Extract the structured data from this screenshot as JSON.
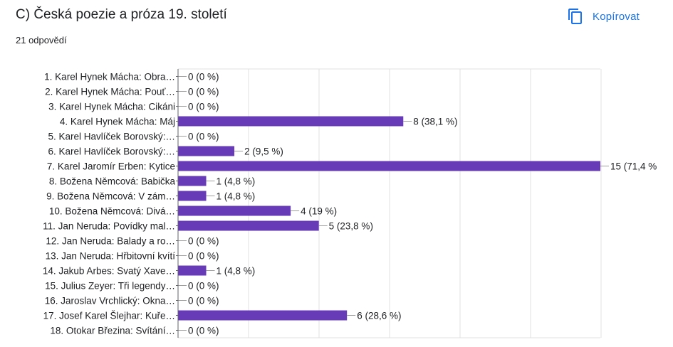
{
  "header": {
    "title": "C) Česká poezie a próza 19. století",
    "responses": "21 odpovědí",
    "copy_label": "Kopírovat",
    "copy_icon": "copy-icon"
  },
  "colors": {
    "bar": "#673ab7",
    "accent": "#1a73e8",
    "grid": "#e0e0e0",
    "axis": "#5f6368"
  },
  "chart_data": {
    "type": "bar",
    "orientation": "horizontal",
    "grid": true,
    "categories": [
      "1. Karel Hynek Mácha: Obra…",
      "2. Karel Hynek Mácha: Pouť…",
      "3. Karel Hynek Mácha: Cikáni",
      "4. Karel Hynek Mácha: Máj",
      "5. Karel Havlíček Borovský:…",
      "6. Karel Havlíček Borovský:…",
      "7. Karel Jaromír Erben: Kytice",
      "8. Božena Němcová: Babička",
      "9. Božena Němcová: V zám…",
      "10. Božena Němcová: Divá…",
      "11. Jan Neruda: Povídky mal…",
      "12. Jan Neruda: Balady a ro…",
      "13. Jan Neruda: Hřbitovní kvítí",
      "14. Jakub Arbes: Svatý Xave…",
      "15. Julius Zeyer: Tři legendy…",
      "16. Jaroslav Vrchlický: Okna…",
      "17. Josef Karel Šlejhar: Kuře…",
      "18. Otokar Březina: Svítání…"
    ],
    "values": [
      0,
      0,
      0,
      8,
      0,
      2,
      15,
      1,
      1,
      4,
      5,
      0,
      0,
      1,
      0,
      0,
      6,
      0
    ],
    "data_labels": [
      "0 (0 %)",
      "0 (0 %)",
      "0 (0 %)",
      "8 (38,1 %)",
      "0 (0 %)",
      "2 (9,5 %)",
      "15 (71,4 %",
      "1 (4,8 %)",
      "1 (4,8 %)",
      "4 (19 %)",
      "5 (23,8 %)",
      "0 (0 %)",
      "0 (0 %)",
      "1 (4,8 %)",
      "0 (0 %)",
      "0 (0 %)",
      "6 (28,6 %)",
      "0 (0 %)"
    ],
    "xlim": [
      0,
      15
    ]
  }
}
